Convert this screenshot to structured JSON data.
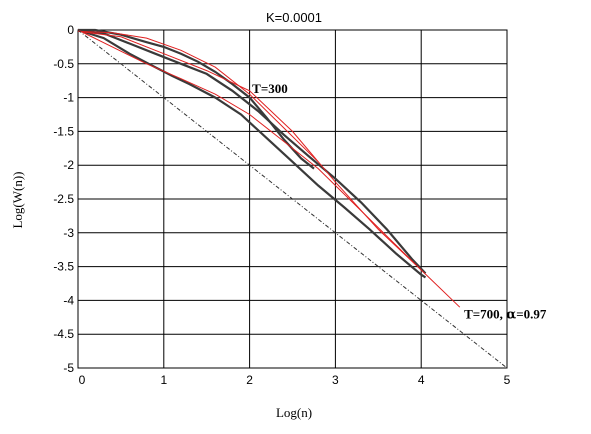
{
  "chart_data": {
    "type": "line",
    "title": "K=0.0001",
    "xlabel": "Log(n)",
    "ylabel": "Log(W(n))",
    "xlim": [
      0,
      5
    ],
    "ylim": [
      -5,
      0
    ],
    "xticks": [
      "0",
      "1",
      "2",
      "3",
      "4",
      "5"
    ],
    "yticks": [
      "0",
      "-0.5",
      "-1",
      "-1.5",
      "-2",
      "-2.5",
      "-3",
      "-3.5",
      "-4",
      "-4.5",
      "-5"
    ],
    "grid": true,
    "annotations": [
      {
        "text": "T=300",
        "x": 2.03,
        "y": -0.93
      },
      {
        "text_main": "T=700, ",
        "text_symbol": "α",
        "text_tail": "=0.97",
        "x": 4.5,
        "y": -4.27
      }
    ],
    "series": [
      {
        "style": "data-dark",
        "color": "#3a3a3a",
        "x": [
          0,
          0.2,
          0.5,
          0.8,
          1.0,
          1.2,
          1.4,
          1.6,
          1.8,
          2.0,
          2.2,
          2.4,
          2.6,
          2.75
        ],
        "y": [
          0,
          0,
          -0.07,
          -0.18,
          -0.25,
          -0.35,
          -0.47,
          -0.62,
          -0.8,
          -1.0,
          -1.3,
          -1.62,
          -1.9,
          -2.05
        ]
      },
      {
        "style": "data-dark",
        "color": "#3a3a3a",
        "x": [
          0,
          0.3,
          0.6,
          0.9,
          1.1,
          1.3,
          1.6,
          1.9,
          2.2,
          2.5,
          2.8,
          3.1,
          3.4,
          3.7,
          4.0,
          4.05
        ],
        "y": [
          0,
          -0.12,
          -0.35,
          -0.55,
          -0.68,
          -0.8,
          -1.0,
          -1.25,
          -1.6,
          -1.95,
          -2.3,
          -2.62,
          -2.95,
          -3.3,
          -3.62,
          -3.66
        ]
      },
      {
        "style": "data-dark",
        "color": "#3a3a3a",
        "x": [
          0,
          0.3,
          0.6,
          0.9,
          1.2,
          1.5,
          1.8,
          2.1,
          2.4,
          2.7,
          3.0,
          3.3,
          3.6,
          3.9,
          4.05
        ],
        "y": [
          0,
          -0.05,
          -0.2,
          -0.35,
          -0.5,
          -0.65,
          -0.9,
          -1.2,
          -1.55,
          -1.88,
          -2.2,
          -2.55,
          -2.95,
          -3.4,
          -3.6
        ]
      },
      {
        "style": "fit-red",
        "color": "#e02020",
        "x": [
          0,
          0.4,
          0.8,
          1.2,
          1.6,
          2.0,
          2.4,
          2.8
        ],
        "y": [
          -0.02,
          -0.04,
          -0.12,
          -0.3,
          -0.55,
          -0.95,
          -1.45,
          -1.95
        ]
      },
      {
        "style": "fit-red",
        "color": "#e02020",
        "x": [
          0,
          0.4,
          0.8,
          1.2,
          1.6,
          2.0,
          2.4,
          2.8,
          3.2,
          3.6,
          4.0,
          4.45
        ],
        "y": [
          0,
          -0.25,
          -0.5,
          -0.72,
          -0.95,
          -1.25,
          -1.65,
          -2.05,
          -2.55,
          -3.05,
          -3.55,
          -4.1
        ]
      },
      {
        "style": "fit-red",
        "color": "#e02020",
        "x": [
          0,
          0.5,
          1.0,
          1.5,
          2.0,
          2.5,
          3.0,
          3.5,
          4.0
        ],
        "y": [
          -0.02,
          -0.1,
          -0.35,
          -0.6,
          -0.9,
          -1.5,
          -2.25,
          -2.95,
          -3.55
        ]
      },
      {
        "style": "reference-dotted",
        "color": "#333333",
        "x": [
          0,
          5
        ],
        "y": [
          0,
          -5
        ]
      }
    ]
  }
}
